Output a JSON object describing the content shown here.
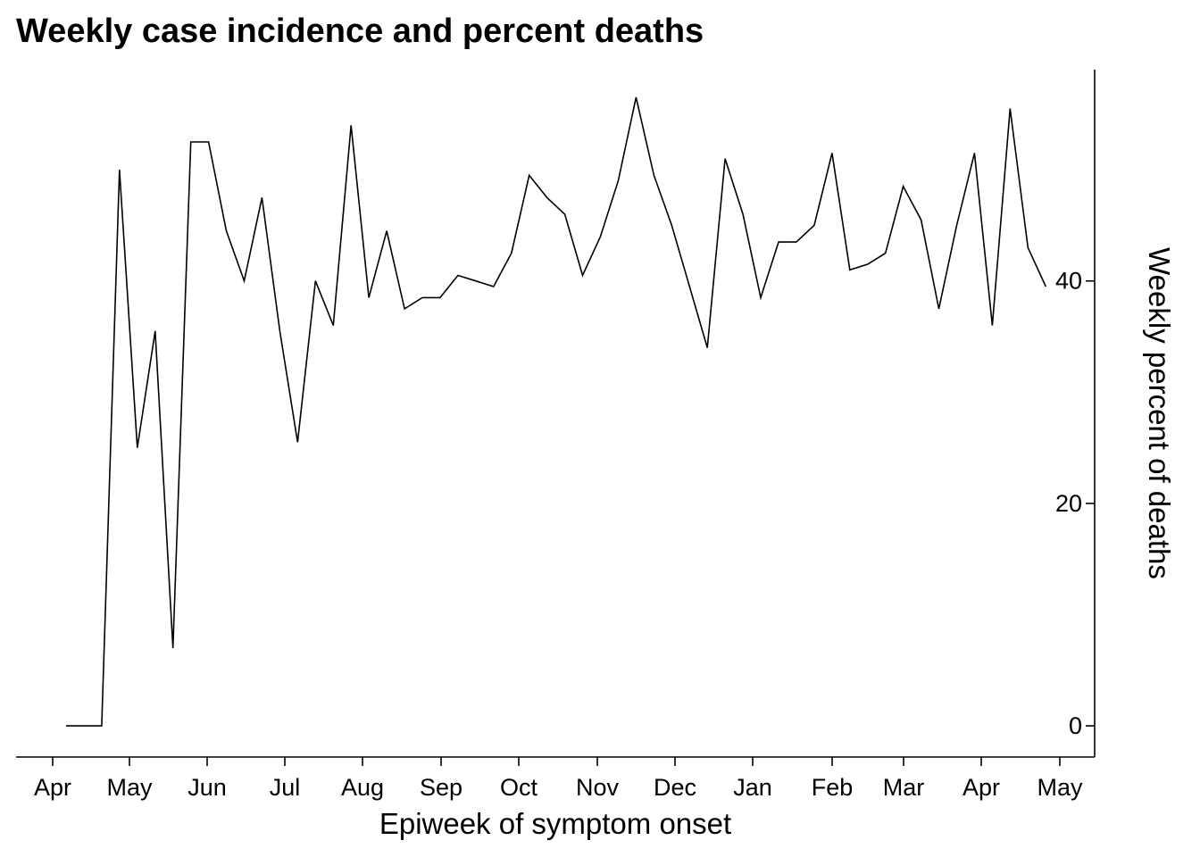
{
  "chart_data": {
    "type": "line",
    "title": "Weekly case incidence and percent deaths",
    "xlabel": "Epiweek of symptom onset",
    "ylabel": "Weekly percent of deaths",
    "y_axis_side": "right",
    "ylim": [
      -2.8,
      59
    ],
    "y_ticks": [
      0,
      20,
      40
    ],
    "x_tick_labels": [
      "Apr",
      "May",
      "Jun",
      "Jul",
      "Aug",
      "Sep",
      "Oct",
      "Nov",
      "Dec",
      "Jan",
      "Feb",
      "Mar",
      "Apr",
      "May"
    ],
    "grid": false,
    "legend": "none",
    "line_color": "#000000",
    "series": [
      {
        "values": [
          0,
          0,
          0,
          50,
          25,
          35.5,
          7,
          52.5,
          52.5,
          44.5,
          40,
          47.5,
          35.5,
          25.5,
          40,
          36,
          54,
          38.5,
          44.5,
          37.5,
          38.5,
          38.5,
          40.5,
          40,
          39.5,
          42.5,
          49.5,
          47.5,
          46,
          40.5,
          44,
          49,
          56.5,
          49.5,
          45,
          39.5,
          34,
          51,
          46,
          38.5,
          43.5,
          43.5,
          45,
          51.5,
          41,
          41.5,
          42.5,
          48.5,
          45.5,
          37.5,
          45,
          51.5,
          36,
          55.5,
          43,
          39.5
        ]
      }
    ]
  }
}
